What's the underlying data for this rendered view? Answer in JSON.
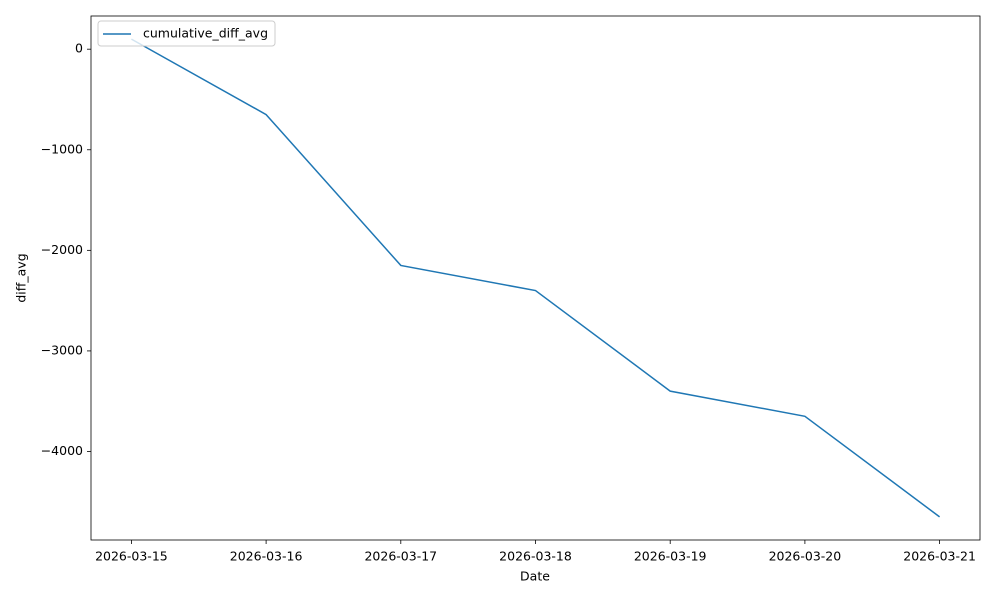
{
  "chart_data": {
    "type": "line",
    "x": [
      "2026-03-15",
      "2026-03-16",
      "2026-03-17",
      "2026-03-18",
      "2026-03-19",
      "2026-03-20",
      "2026-03-21"
    ],
    "series": [
      {
        "name": "cumulative_diff_avg",
        "color": "#1f77b4",
        "values": [
          100,
          -650,
          -2150,
          -2400,
          -3400,
          -3650,
          -4650
        ]
      }
    ],
    "x_label": "Date",
    "y_label": "diff_avg",
    "ylim": [
      -4880,
      330
    ],
    "yticks": [
      {
        "value": -4000,
        "label": "−4000"
      },
      {
        "value": -3000,
        "label": "−3000"
      },
      {
        "value": -2000,
        "label": "−2000"
      },
      {
        "value": -1000,
        "label": "−1000"
      },
      0
    ],
    "legend": "upper left",
    "grid": false
  }
}
